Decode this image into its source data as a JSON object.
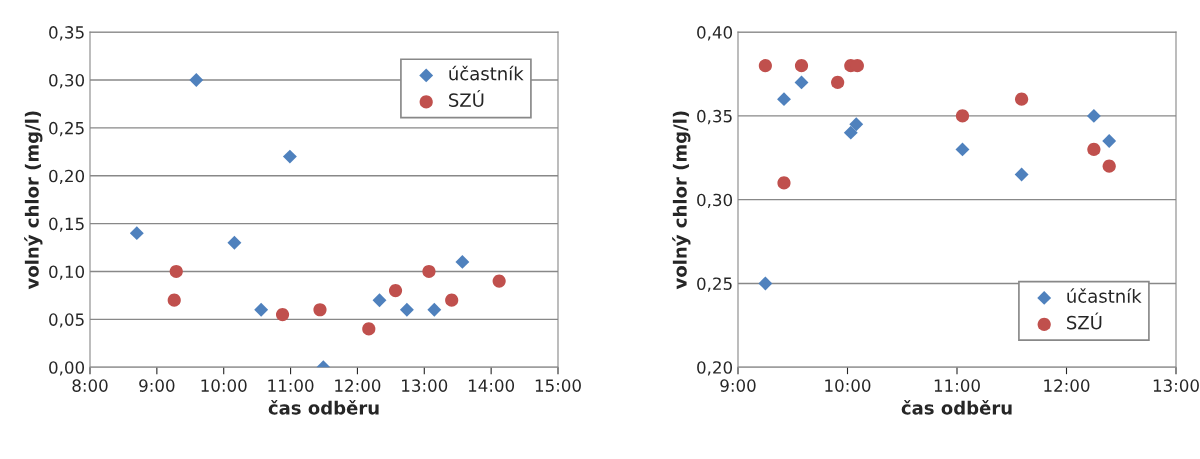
{
  "chart_data": [
    {
      "type": "scatter",
      "xlabel": "čas odběru",
      "ylabel": "volný chlor (mg/l)",
      "grid": "y",
      "legend": "top right",
      "xlim": [
        8,
        15
      ],
      "xticks": [
        {
          "value": 8,
          "label": "8:00"
        },
        {
          "value": 9,
          "label": "9:00"
        },
        {
          "value": 10,
          "label": "10:00"
        },
        {
          "value": 11,
          "label": "11:00"
        },
        {
          "value": 12,
          "label": "12:00"
        },
        {
          "value": 13,
          "label": "13:00"
        },
        {
          "value": 14,
          "label": "14:00"
        },
        {
          "value": 15,
          "label": "15:00"
        }
      ],
      "ylim": [
        0,
        0.35
      ],
      "yticks": [
        {
          "value": 0,
          "label": "0,00"
        },
        {
          "value": 0.05,
          "label": "0,05"
        },
        {
          "value": 0.1,
          "label": "0,10"
        },
        {
          "value": 0.15,
          "label": "0,15"
        },
        {
          "value": 0.2,
          "label": "0,20"
        },
        {
          "value": 0.25,
          "label": "0,25"
        },
        {
          "value": 0.3,
          "label": "0,30"
        },
        {
          "value": 0.35,
          "label": "0,35"
        }
      ],
      "series": [
        {
          "name": "účastník",
          "color": "#4f81bd",
          "marker": "diamond",
          "x": [
            8.7,
            9.59,
            10.16,
            10.56,
            10.99,
            11.49,
            12.33,
            12.74,
            13.15,
            13.57
          ],
          "values": [
            0.14,
            0.3,
            0.13,
            0.06,
            0.22,
            0.0,
            0.07,
            0.06,
            0.06,
            0.11
          ]
        },
        {
          "name": "SZÚ",
          "color": "#c0504d",
          "marker": "circle",
          "x": [
            9.26,
            9.29,
            10.88,
            11.44,
            12.17,
            12.57,
            13.07,
            13.41,
            14.12
          ],
          "values": [
            0.07,
            0.1,
            0.055,
            0.06,
            0.04,
            0.08,
            0.1,
            0.07,
            0.09
          ]
        }
      ]
    },
    {
      "type": "scatter",
      "xlabel": "čas odběru",
      "ylabel": "volný chlor (mg/l)",
      "grid": "y",
      "legend": "bottom right",
      "xlim": [
        9,
        13
      ],
      "xticks": [
        {
          "value": 9,
          "label": "9:00"
        },
        {
          "value": 10,
          "label": "10:00"
        },
        {
          "value": 11,
          "label": "11:00"
        },
        {
          "value": 12,
          "label": "12:00"
        },
        {
          "value": 13,
          "label": "13:00"
        }
      ],
      "ylim": [
        0.2,
        0.4
      ],
      "yticks": [
        {
          "value": 0.2,
          "label": "0,20"
        },
        {
          "value": 0.25,
          "label": "0,25"
        },
        {
          "value": 0.3,
          "label": "0,30"
        },
        {
          "value": 0.35,
          "label": "0,35"
        },
        {
          "value": 0.4,
          "label": "0,40"
        }
      ],
      "series": [
        {
          "name": "účastník",
          "color": "#4f81bd",
          "marker": "diamond",
          "x": [
            9.25,
            9.42,
            9.58,
            10.03,
            10.08,
            11.05,
            11.59,
            12.25,
            12.39
          ],
          "values": [
            0.25,
            0.36,
            0.37,
            0.34,
            0.345,
            0.33,
            0.315,
            0.35,
            0.335
          ]
        },
        {
          "name": "SZÚ",
          "color": "#c0504d",
          "marker": "circle",
          "x": [
            9.25,
            9.42,
            9.58,
            9.91,
            10.03,
            10.09,
            11.05,
            11.59,
            12.25,
            12.39
          ],
          "values": [
            0.38,
            0.31,
            0.38,
            0.37,
            0.38,
            0.38,
            0.35,
            0.36,
            0.33,
            0.32
          ]
        }
      ]
    }
  ]
}
